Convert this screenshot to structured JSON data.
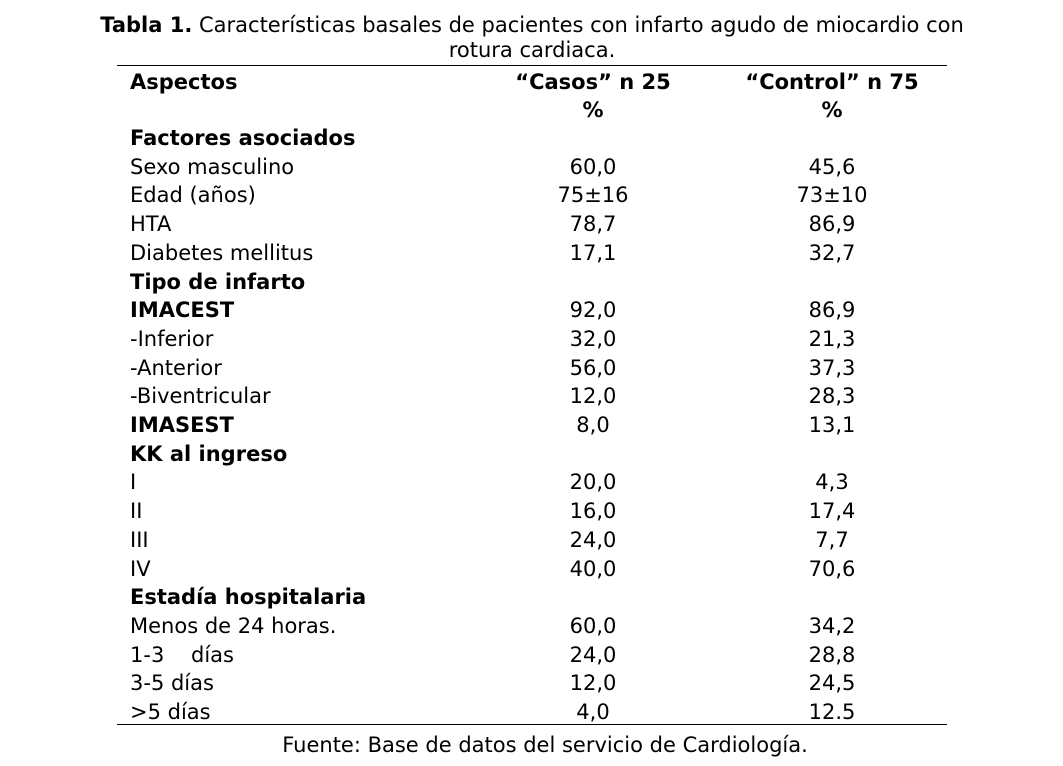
{
  "title": {
    "label": "Tabla 1.",
    "text": "Características basales de pacientes con infarto agudo de miocardio con",
    "continuation": "rotura cardiaca."
  },
  "header": {
    "aspect": "Aspectos",
    "casos": "“Casos” n 25",
    "control": "“Control” n 75",
    "unit": "%"
  },
  "table": {
    "rows": [
      {
        "label": "Factores asociados",
        "bold": true
      },
      {
        "label": "Sexo masculino",
        "casos": "60,0",
        "control": "45,6"
      },
      {
        "label": "Edad (años)",
        "casos": "75±16",
        "control": "73±10"
      },
      {
        "label": "HTA",
        "casos": "78,7",
        "control": "86,9"
      },
      {
        "label": "Diabetes mellitus",
        "casos": "17,1",
        "control": "32,7"
      },
      {
        "label": "Tipo de infarto",
        "bold": true
      },
      {
        "label": "IMACEST",
        "bold": true,
        "casos": "92,0",
        "control": "86,9"
      },
      {
        "label": "-Inferior",
        "casos": "32,0",
        "control": "21,3"
      },
      {
        "label": "-Anterior",
        "casos": "56,0",
        "control": "37,3"
      },
      {
        "label": "-Biventricular",
        "casos": "12,0",
        "control": "28,3"
      },
      {
        "label": "IMASEST",
        "bold": true,
        "casos": "8,0",
        "control": "13,1"
      },
      {
        "label": "KK al ingreso",
        "bold": true
      },
      {
        "label": "I",
        "casos": "20,0",
        "control": "4,3"
      },
      {
        "label": "II",
        "casos": "16,0",
        "control": "17,4"
      },
      {
        "label": "III",
        "casos": "24,0",
        "control": "7,7"
      },
      {
        "label": "IV",
        "casos": "40,0",
        "control": "70,6"
      },
      {
        "label": "Estadía hospitalaria",
        "bold": true
      },
      {
        "label": "Menos de 24 horas.",
        "casos": "60,0",
        "control": "34,2"
      },
      {
        "label": "1-3    días",
        "casos": "24,0",
        "control": "28,8"
      },
      {
        "label": "3-5 días",
        "casos": "12,0",
        "control": "24,5"
      },
      {
        "label": ">5 días",
        "casos": "4,0",
        "control": "12.5"
      }
    ]
  },
  "footer": "Fuente: Base de datos del servicio de Cardiología."
}
